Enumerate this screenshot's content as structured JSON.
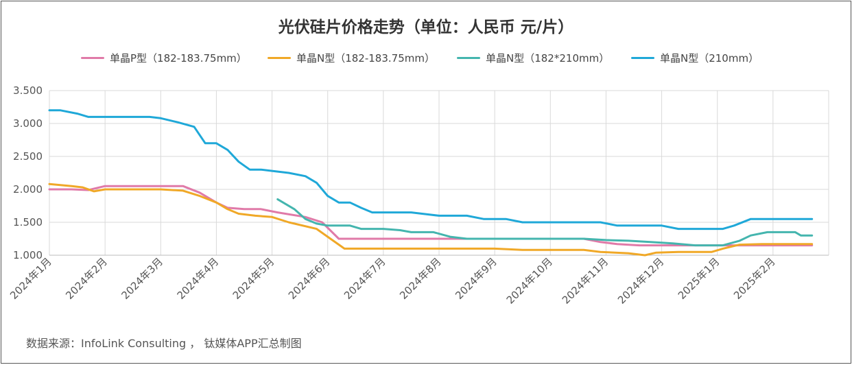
{
  "chart_data": {
    "type": "line",
    "title": "光伏硅片价格走势（单位：人民币 元/片）",
    "xlabel": "",
    "ylabel": "",
    "ylim": [
      1.0,
      3.5
    ],
    "yticks": [
      "3.500",
      "3.000",
      "2.500",
      "2.000",
      "1.500",
      "1.000"
    ],
    "ytick_values": [
      3.5,
      3.0,
      2.5,
      2.0,
      1.5,
      1.0
    ],
    "categories": [
      "2024年1月",
      "2024年2月",
      "2024年3月",
      "2024年4月",
      "2024年5月",
      "2024年6月",
      "2024年7月",
      "2024年8月",
      "2024年9月",
      "2024年10月",
      "2024年11月",
      "2024年12月",
      "2025年1月",
      "2025年2月"
    ],
    "grid": true,
    "legend_position": "top",
    "series": [
      {
        "name": "单晶P型（182-183.75mm）",
        "color": "#e07aa8",
        "points": [
          [
            0,
            2.0
          ],
          [
            0.4,
            2.0
          ],
          [
            0.7,
            1.99
          ],
          [
            1.0,
            2.05
          ],
          [
            1.5,
            2.05
          ],
          [
            2.0,
            2.05
          ],
          [
            2.4,
            2.05
          ],
          [
            2.7,
            1.95
          ],
          [
            3.0,
            1.8
          ],
          [
            3.2,
            1.72
          ],
          [
            3.5,
            1.7
          ],
          [
            3.8,
            1.7
          ],
          [
            4.1,
            1.65
          ],
          [
            4.6,
            1.58
          ],
          [
            4.9,
            1.5
          ],
          [
            5.2,
            1.25
          ],
          [
            5.6,
            1.25
          ],
          [
            6.0,
            1.25
          ],
          [
            7.0,
            1.25
          ],
          [
            8.0,
            1.25
          ],
          [
            9.0,
            1.25
          ],
          [
            9.6,
            1.25
          ],
          [
            9.9,
            1.2
          ],
          [
            10.2,
            1.17
          ],
          [
            10.6,
            1.15
          ],
          [
            11.2,
            1.15
          ],
          [
            12.0,
            1.15
          ],
          [
            12.8,
            1.15
          ],
          [
            13.7,
            1.15
          ]
        ]
      },
      {
        "name": "单晶N型（182-183.75mm）",
        "color": "#f0a827",
        "points": [
          [
            0,
            2.08
          ],
          [
            0.4,
            2.05
          ],
          [
            0.6,
            2.03
          ],
          [
            0.8,
            1.97
          ],
          [
            1.0,
            2.0
          ],
          [
            1.5,
            2.0
          ],
          [
            2.0,
            2.0
          ],
          [
            2.4,
            1.98
          ],
          [
            2.7,
            1.9
          ],
          [
            3.0,
            1.8
          ],
          [
            3.2,
            1.7
          ],
          [
            3.4,
            1.63
          ],
          [
            3.7,
            1.6
          ],
          [
            4.0,
            1.58
          ],
          [
            4.3,
            1.5
          ],
          [
            4.8,
            1.4
          ],
          [
            5.0,
            1.28
          ],
          [
            5.3,
            1.1
          ],
          [
            5.7,
            1.1
          ],
          [
            6.0,
            1.1
          ],
          [
            7.0,
            1.1
          ],
          [
            8.0,
            1.1
          ],
          [
            8.5,
            1.08
          ],
          [
            9.0,
            1.08
          ],
          [
            9.6,
            1.08
          ],
          [
            9.9,
            1.05
          ],
          [
            10.4,
            1.03
          ],
          [
            10.7,
            1.0
          ],
          [
            10.9,
            1.04
          ],
          [
            11.3,
            1.05
          ],
          [
            11.9,
            1.05
          ],
          [
            12.1,
            1.1
          ],
          [
            12.4,
            1.16
          ],
          [
            12.8,
            1.17
          ],
          [
            13.3,
            1.17
          ],
          [
            13.7,
            1.17
          ]
        ]
      },
      {
        "name": "单晶N型（182*210mm）",
        "color": "#44b5ae",
        "points": [
          [
            4.1,
            1.85
          ],
          [
            4.4,
            1.7
          ],
          [
            4.6,
            1.55
          ],
          [
            4.8,
            1.48
          ],
          [
            5.0,
            1.45
          ],
          [
            5.4,
            1.45
          ],
          [
            5.6,
            1.4
          ],
          [
            6.0,
            1.4
          ],
          [
            6.3,
            1.38
          ],
          [
            6.5,
            1.35
          ],
          [
            6.9,
            1.35
          ],
          [
            7.2,
            1.28
          ],
          [
            7.5,
            1.25
          ],
          [
            8.0,
            1.25
          ],
          [
            8.5,
            1.25
          ],
          [
            9.0,
            1.25
          ],
          [
            9.6,
            1.25
          ],
          [
            10.0,
            1.23
          ],
          [
            10.4,
            1.22
          ],
          [
            10.8,
            1.2
          ],
          [
            11.2,
            1.18
          ],
          [
            11.6,
            1.15
          ],
          [
            12.1,
            1.15
          ],
          [
            12.4,
            1.22
          ],
          [
            12.6,
            1.3
          ],
          [
            12.9,
            1.35
          ],
          [
            13.2,
            1.35
          ],
          [
            13.4,
            1.35
          ],
          [
            13.5,
            1.3
          ],
          [
            13.7,
            1.3
          ]
        ]
      },
      {
        "name": "单晶N型（210mm）",
        "color": "#1fa8d8",
        "points": [
          [
            0,
            3.2
          ],
          [
            0.2,
            3.2
          ],
          [
            0.5,
            3.15
          ],
          [
            0.7,
            3.1
          ],
          [
            1.0,
            3.1
          ],
          [
            1.5,
            3.1
          ],
          [
            1.8,
            3.1
          ],
          [
            2.0,
            3.08
          ],
          [
            2.3,
            3.02
          ],
          [
            2.6,
            2.95
          ],
          [
            2.8,
            2.7
          ],
          [
            3.0,
            2.7
          ],
          [
            3.2,
            2.6
          ],
          [
            3.4,
            2.42
          ],
          [
            3.6,
            2.3
          ],
          [
            3.8,
            2.3
          ],
          [
            4.0,
            2.28
          ],
          [
            4.3,
            2.25
          ],
          [
            4.6,
            2.2
          ],
          [
            4.8,
            2.1
          ],
          [
            5.0,
            1.9
          ],
          [
            5.2,
            1.8
          ],
          [
            5.4,
            1.8
          ],
          [
            5.6,
            1.72
          ],
          [
            5.8,
            1.65
          ],
          [
            6.0,
            1.65
          ],
          [
            6.5,
            1.65
          ],
          [
            6.8,
            1.62
          ],
          [
            7.0,
            1.6
          ],
          [
            7.5,
            1.6
          ],
          [
            7.8,
            1.55
          ],
          [
            8.2,
            1.55
          ],
          [
            8.5,
            1.5
          ],
          [
            9.0,
            1.5
          ],
          [
            9.5,
            1.5
          ],
          [
            9.9,
            1.5
          ],
          [
            10.2,
            1.45
          ],
          [
            10.6,
            1.45
          ],
          [
            11.0,
            1.45
          ],
          [
            11.3,
            1.4
          ],
          [
            11.8,
            1.4
          ],
          [
            12.1,
            1.4
          ],
          [
            12.3,
            1.45
          ],
          [
            12.6,
            1.55
          ],
          [
            12.9,
            1.55
          ],
          [
            13.3,
            1.55
          ],
          [
            13.7,
            1.55
          ]
        ]
      }
    ]
  },
  "source_note": "数据来源：InfoLink Consulting ，  钛媒体APP汇总制图"
}
